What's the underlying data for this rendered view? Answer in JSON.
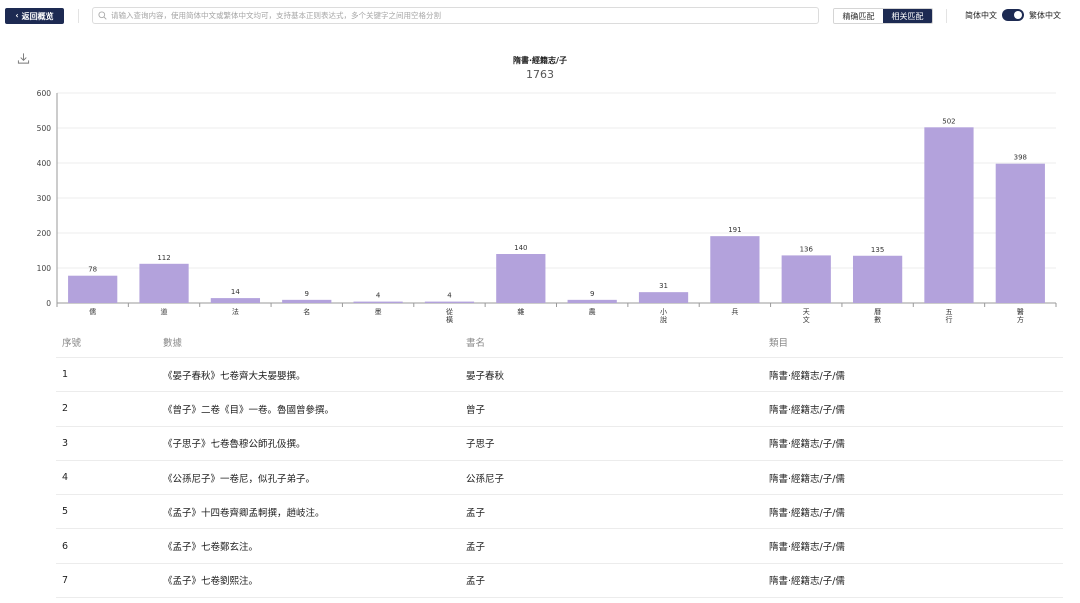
{
  "topbar": {
    "back_label": "返回概览",
    "search_placeholder": "请输入查询内容，使用简体中文或繁体中文均可，支持基本正则表达式，多个关键字之间用空格分割",
    "match_exact": "精确匹配",
    "match_related": "相关匹配",
    "lang_simplified": "简体中文",
    "lang_traditional": "繁体中文"
  },
  "chart_data": {
    "type": "bar",
    "title": "隋書·經籍志/子",
    "subtitle": "1763",
    "categories": [
      "儒",
      "道",
      "法",
      "名",
      "墨",
      "從\n橫",
      "雜",
      "農",
      "小\n說",
      "兵",
      "天\n文",
      "曆\n數",
      "五\n行",
      "醫\n方"
    ],
    "values": [
      78,
      112,
      14,
      9,
      4,
      4,
      140,
      9,
      31,
      191,
      136,
      135,
      502,
      398
    ],
    "ylim": [
      0,
      600
    ],
    "yticks": [
      0,
      100,
      200,
      300,
      400,
      500,
      600
    ],
    "grid": true,
    "bar_color": "#b3a2dc"
  },
  "table": {
    "headers": [
      "序號",
      "數據",
      "書名",
      "類目"
    ],
    "rows": [
      [
        "1",
        "《晏子春秋》七卷齊大夫晏嬰撰。",
        "晏子春秋",
        "隋書·經籍志/子/儒"
      ],
      [
        "2",
        "《曾子》二卷《目》一卷。魯國曾參撰。",
        "曾子",
        "隋書·經籍志/子/儒"
      ],
      [
        "3",
        "《子思子》七卷魯穆公師孔伋撰。",
        "子思子",
        "隋書·經籍志/子/儒"
      ],
      [
        "4",
        "《公孫尼子》一卷尼，似孔子弟子。",
        "公孫尼子",
        "隋書·經籍志/子/儒"
      ],
      [
        "5",
        "《孟子》十四卷齊卿孟軻撰，趙岐注。",
        "孟子",
        "隋書·經籍志/子/儒"
      ],
      [
        "6",
        "《孟子》七卷鄭玄注。",
        "孟子",
        "隋書·經籍志/子/儒"
      ],
      [
        "7",
        "《孟子》七卷劉熙注。",
        "孟子",
        "隋書·經籍志/子/儒"
      ]
    ]
  },
  "colors": {
    "accent": "#1d2a52",
    "bar": "#b3a2dc"
  }
}
